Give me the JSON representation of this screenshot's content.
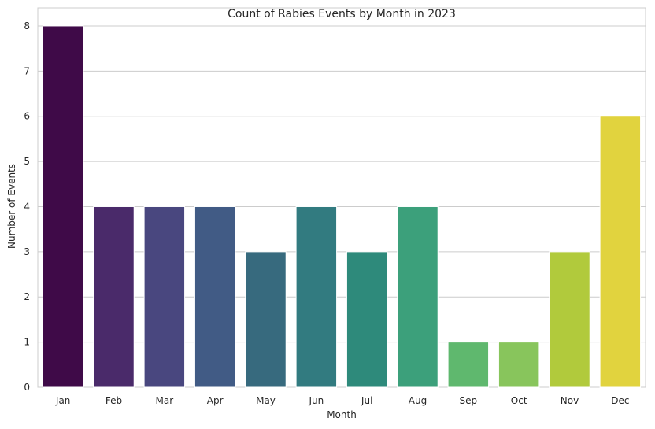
{
  "chart_data": {
    "type": "bar",
    "title": "Count of Rabies Events by Month in 2023",
    "xlabel": "Month",
    "ylabel": "Number of Events",
    "categories": [
      "Jan",
      "Feb",
      "Mar",
      "Apr",
      "May",
      "Jun",
      "Jul",
      "Aug",
      "Sep",
      "Oct",
      "Nov",
      "Dec"
    ],
    "values": [
      8,
      4,
      4,
      4,
      3,
      4,
      3,
      4,
      1,
      1,
      3,
      6
    ],
    "ylim": [
      0,
      8.4
    ],
    "yticks": [
      0,
      1,
      2,
      3,
      4,
      5,
      6,
      7,
      8
    ],
    "grid": "horizontal",
    "colors": [
      "#440154",
      "#482878",
      "#3e4989",
      "#31688e",
      "#26828e",
      "#1f9e89",
      "#35b779",
      "#6ece58",
      "#b5de2b",
      "#fde725"
    ],
    "bar_colors": [
      "#3f0a48",
      "#4a2a6a",
      "#49477f",
      "#415b85",
      "#376a7e",
      "#327b80",
      "#2e8a7b",
      "#3ca07b",
      "#5fb86e",
      "#88c55c",
      "#b1ca3c",
      "#e1d33e"
    ]
  }
}
